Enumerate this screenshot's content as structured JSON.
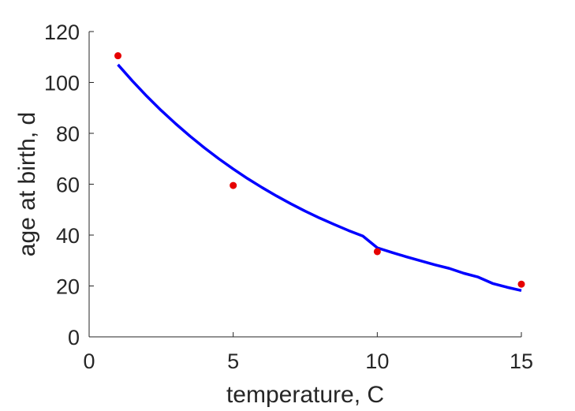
{
  "chart_data": {
    "type": "scatter",
    "title": "",
    "xlabel": "temperature, C",
    "ylabel": "age at birth, d",
    "xlim": [
      0,
      15
    ],
    "ylim": [
      0,
      120
    ],
    "xticks": [
      0,
      5,
      10,
      15
    ],
    "yticks": [
      0,
      20,
      40,
      60,
      80,
      100,
      120
    ],
    "grid": false,
    "legend": "none",
    "series": [
      {
        "kind": "points",
        "color": "#e60000",
        "x": [
          1,
          5,
          10,
          15
        ],
        "y": [
          110.5,
          59.5,
          33.5,
          20.7
        ]
      },
      {
        "kind": "line",
        "color": "#0000ff",
        "x": [
          1,
          1.5,
          2,
          2.5,
          3,
          3.5,
          4,
          4.5,
          5,
          5.5,
          6,
          6.5,
          7,
          7.5,
          8,
          8.5,
          9,
          9.5,
          10,
          10.5,
          11,
          11.5,
          12,
          12.5,
          13,
          13.5,
          14,
          14.5,
          15
        ],
        "y": [
          107.0,
          100.6,
          94.6,
          89.0,
          83.8,
          78.9,
          74.3,
          70.0,
          66.0,
          62.2,
          58.7,
          55.4,
          52.3,
          49.4,
          46.7,
          44.2,
          41.8,
          39.6,
          35.0,
          33.2,
          31.5,
          29.9,
          28.3,
          26.9,
          25.0,
          23.5,
          21.0,
          19.5,
          18.2
        ]
      }
    ]
  }
}
